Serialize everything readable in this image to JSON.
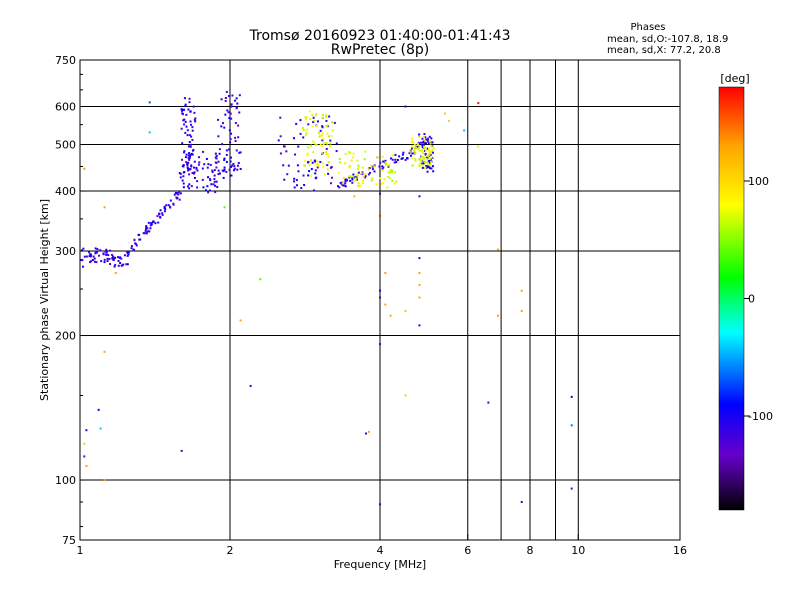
{
  "chart_data": {
    "type": "scatter",
    "title": "Tromsø 20160923 01:40:00-01:41:43",
    "subtitle": "RwPretec (8p)",
    "stats": {
      "heading": "Phases",
      "line1": "mean, sd,O:-107.8, 18.9",
      "line2": "mean, sd,X:  77.2, 20.8"
    },
    "xlabel": "Frequency [MHz]",
    "ylabel": "Stationary phase Virtual Height [km]",
    "xscale": "log",
    "yscale": "log",
    "xlim": [
      1,
      16
    ],
    "ylim": [
      75,
      750
    ],
    "xticks": [
      1,
      2,
      4,
      6,
      8,
      10,
      16
    ],
    "xtick_labels": [
      "1",
      "2",
      "4",
      "6",
      "8",
      "10",
      "16"
    ],
    "xgrid": [
      2,
      4,
      6,
      7,
      8,
      9,
      10
    ],
    "yticks": [
      75,
      100,
      200,
      300,
      400,
      500,
      600,
      750
    ],
    "ytick_labels": [
      "75",
      "100",
      "200",
      "300",
      "400",
      "500",
      "600",
      "750"
    ],
    "ygrid": [
      100,
      200,
      300,
      400,
      500,
      600
    ],
    "grid": true,
    "colorbar": {
      "label": "[deg]",
      "range": [
        -180,
        180
      ],
      "ticks": [
        100,
        0,
        -100
      ],
      "tick_labels": [
        "100",
        "0",
        "-100"
      ],
      "colors": [
        "#ff0000",
        "#ffa500",
        "#ffff00",
        "#00ff00",
        "#00ffff",
        "#0000ff",
        "#6600cc",
        "#000000"
      ]
    },
    "traces": [
      {
        "name": "O",
        "phase_mean": -107.8,
        "phase_sd": 18.9,
        "segments": [
          {
            "freq": [
              1.0,
              1.25
            ],
            "height": [
              280,
              300
            ]
          },
          {
            "freq": [
              1.25,
              1.6
            ],
            "height": [
              300,
              400
            ]
          },
          {
            "freq": [
              1.6,
              1.9
            ],
            "height": [
              400,
              480
            ]
          },
          {
            "freq": [
              1.9,
              2.1
            ],
            "height": [
              430,
              640
            ]
          },
          {
            "freq": [
              1.6,
              1.7
            ],
            "height": [
              430,
              620
            ]
          },
          {
            "freq": [
              2.5,
              3.3
            ],
            "height": [
              400,
              580
            ]
          },
          {
            "freq": [
              3.3,
              4.8
            ],
            "height": [
              410,
              490
            ]
          },
          {
            "freq": [
              4.8,
              5.1
            ],
            "height": [
              440,
              520
            ]
          }
        ]
      },
      {
        "name": "X",
        "phase_mean": 77.2,
        "phase_sd": 20.8,
        "segments": [
          {
            "freq": [
              2.8,
              3.2
            ],
            "height": [
              430,
              580
            ]
          },
          {
            "freq": [
              3.3,
              4.3
            ],
            "height": [
              410,
              480
            ]
          },
          {
            "freq": [
              4.6,
              5.1
            ],
            "height": [
              450,
              510
            ]
          }
        ]
      }
    ],
    "scatter_points": [
      {
        "f": 1.38,
        "h": 612,
        "phase": -70
      },
      {
        "f": 1.38,
        "h": 530,
        "phase": -40
      },
      {
        "f": 1.02,
        "h": 445,
        "phase": 130
      },
      {
        "f": 1.12,
        "h": 370,
        "phase": 130
      },
      {
        "f": 1.18,
        "h": 270,
        "phase": 130
      },
      {
        "f": 1.12,
        "h": 185,
        "phase": 130
      },
      {
        "f": 1.09,
        "h": 140,
        "phase": -100
      },
      {
        "f": 1.1,
        "h": 128,
        "phase": -40
      },
      {
        "f": 1.03,
        "h": 127,
        "phase": -100
      },
      {
        "f": 1.02,
        "h": 119,
        "phase": 110
      },
      {
        "f": 1.02,
        "h": 112,
        "phase": -80
      },
      {
        "f": 1.03,
        "h": 107,
        "phase": 130
      },
      {
        "f": 1.12,
        "h": 100,
        "phase": 130
      },
      {
        "f": 1.6,
        "h": 115,
        "phase": -110
      },
      {
        "f": 1.95,
        "h": 370,
        "phase": 40
      },
      {
        "f": 2.1,
        "h": 215,
        "phase": 130
      },
      {
        "f": 2.2,
        "h": 157,
        "phase": -110
      },
      {
        "f": 2.3,
        "h": 262,
        "phase": 40
      },
      {
        "f": 3.55,
        "h": 390,
        "phase": 120
      },
      {
        "f": 3.8,
        "h": 126,
        "phase": 130
      },
      {
        "f": 3.75,
        "h": 125,
        "phase": -110
      },
      {
        "f": 3.95,
        "h": 470,
        "phase": 130
      },
      {
        "f": 4.0,
        "h": 355,
        "phase": 170
      },
      {
        "f": 4.0,
        "h": 395,
        "phase": -110
      },
      {
        "f": 4.0,
        "h": 248,
        "phase": -110
      },
      {
        "f": 4.0,
        "h": 240,
        "phase": -120
      },
      {
        "f": 4.0,
        "h": 192,
        "phase": -120
      },
      {
        "f": 4.0,
        "h": 89,
        "phase": -110
      },
      {
        "f": 4.5,
        "h": 600,
        "phase": -110
      },
      {
        "f": 4.5,
        "h": 225,
        "phase": 110
      },
      {
        "f": 4.5,
        "h": 150,
        "phase": 110
      },
      {
        "f": 4.8,
        "h": 520,
        "phase": 110
      },
      {
        "f": 4.8,
        "h": 390,
        "phase": -110
      },
      {
        "f": 4.8,
        "h": 290,
        "phase": -110
      },
      {
        "f": 4.8,
        "h": 270,
        "phase": 130
      },
      {
        "f": 4.8,
        "h": 255,
        "phase": 130
      },
      {
        "f": 4.8,
        "h": 240,
        "phase": 130
      },
      {
        "f": 4.8,
        "h": 210,
        "phase": -110
      },
      {
        "f": 4.1,
        "h": 270,
        "phase": 130
      },
      {
        "f": 4.1,
        "h": 232,
        "phase": 130
      },
      {
        "f": 4.2,
        "h": 220,
        "phase": 130
      },
      {
        "f": 5.4,
        "h": 580,
        "phase": 110
      },
      {
        "f": 5.5,
        "h": 560,
        "phase": 110
      },
      {
        "f": 5.9,
        "h": 535,
        "phase": -40
      },
      {
        "f": 6.3,
        "h": 610,
        "phase": 175
      },
      {
        "f": 6.3,
        "h": 495,
        "phase": 100
      },
      {
        "f": 6.6,
        "h": 145,
        "phase": -110
      },
      {
        "f": 6.9,
        "h": 302,
        "phase": 130
      },
      {
        "f": 6.9,
        "h": 220,
        "phase": 130
      },
      {
        "f": 7.7,
        "h": 248,
        "phase": 130
      },
      {
        "f": 7.7,
        "h": 225,
        "phase": 130
      },
      {
        "f": 7.7,
        "h": 90,
        "phase": -110
      },
      {
        "f": 9.7,
        "h": 149,
        "phase": -100
      },
      {
        "f": 9.7,
        "h": 130,
        "phase": -60
      },
      {
        "f": 9.7,
        "h": 96,
        "phase": -120
      }
    ]
  }
}
